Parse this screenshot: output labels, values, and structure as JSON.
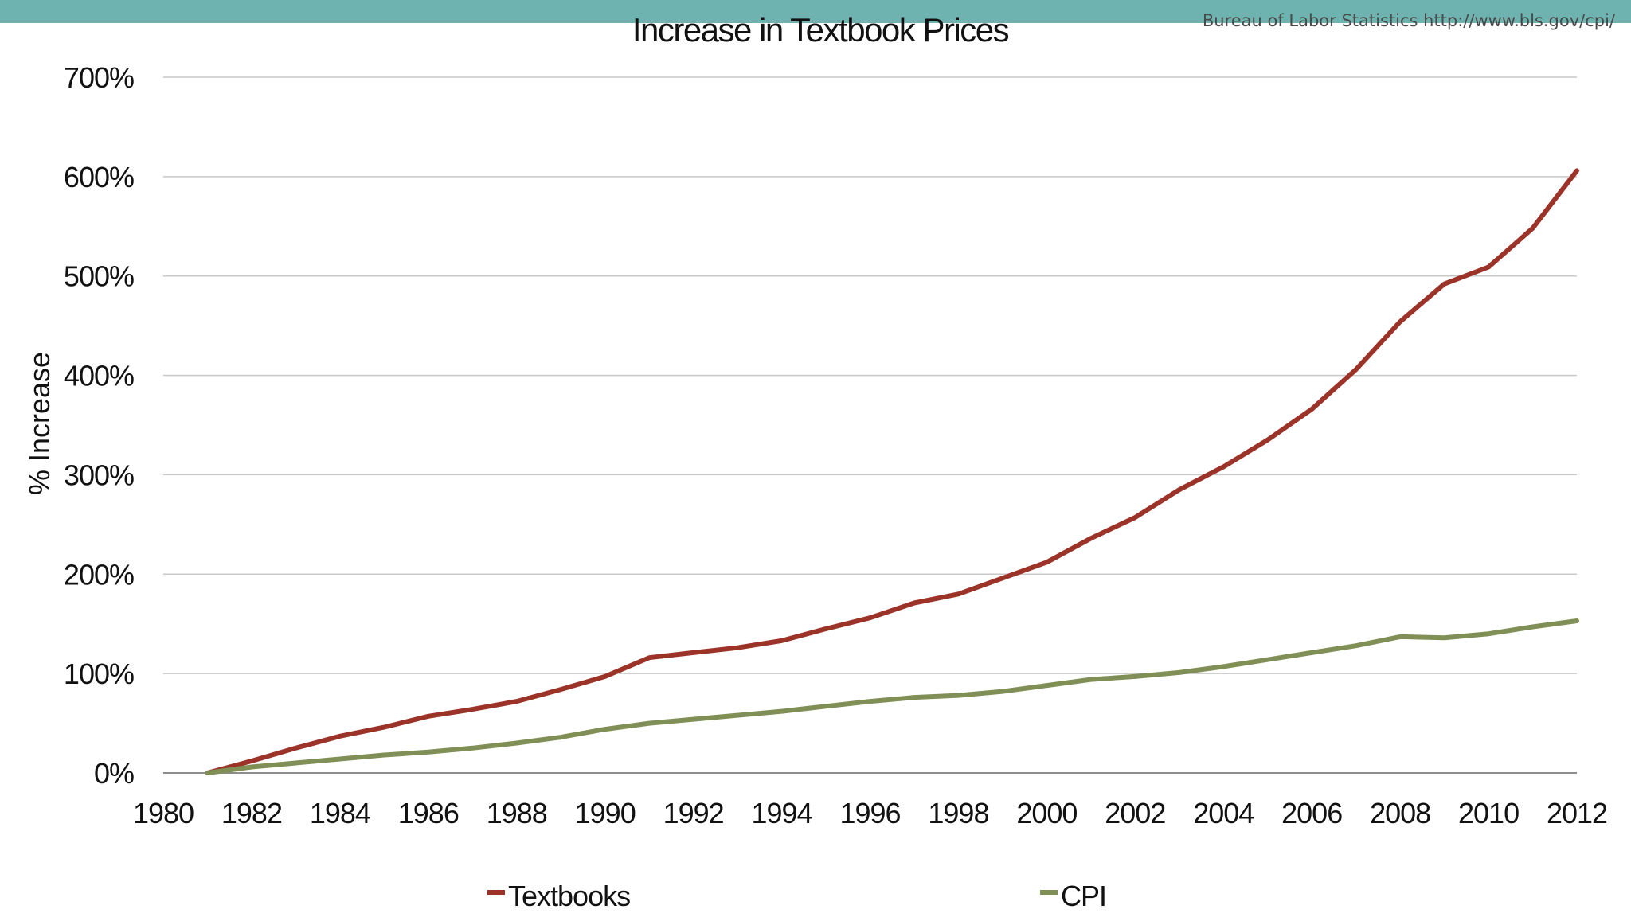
{
  "header": {
    "source": "Bureau of Labor Statistics http://www.bls.gov/cpi/",
    "band_color": "#6fb3b0"
  },
  "chart_data": {
    "type": "line",
    "title": "Increase in Textbook Prices",
    "ylabel": "% Increase",
    "xlabel": "",
    "xlim": [
      1980,
      2012
    ],
    "ylim": [
      0,
      700
    ],
    "x_ticks": [
      "1980",
      "1982",
      "1984",
      "1986",
      "1988",
      "1990",
      "1992",
      "1994",
      "1996",
      "1998",
      "2000",
      "2002",
      "2004",
      "2006",
      "2008",
      "2010",
      "2012"
    ],
    "y_ticks": [
      "0%",
      "100%",
      "200%",
      "300%",
      "400%",
      "500%",
      "600%",
      "700%"
    ],
    "grid": true,
    "legend": "bottom",
    "x": [
      1981,
      1982,
      1983,
      1984,
      1985,
      1986,
      1987,
      1988,
      1989,
      1990,
      1991,
      1992,
      1993,
      1994,
      1995,
      1996,
      1997,
      1998,
      1999,
      2000,
      2001,
      2002,
      2003,
      2004,
      2005,
      2006,
      2007,
      2008,
      2009,
      2010,
      2011,
      2012
    ],
    "series": [
      {
        "name": "Textbooks",
        "color": "#9b3329",
        "values": [
          0,
          12,
          25,
          37,
          46,
          57,
          64,
          72,
          84,
          97,
          116,
          121,
          126,
          133,
          145,
          156,
          171,
          180,
          196,
          212,
          236,
          257,
          285,
          308,
          335,
          366,
          406,
          454,
          492,
          509,
          548,
          606
        ]
      },
      {
        "name": "CPI",
        "color": "#7f8f55",
        "values": [
          0,
          6,
          10,
          14,
          18,
          21,
          25,
          30,
          36,
          44,
          50,
          54,
          58,
          62,
          67,
          72,
          76,
          78,
          82,
          88,
          94,
          97,
          101,
          107,
          114,
          121,
          128,
          137,
          136,
          140,
          147,
          153
        ]
      }
    ]
  }
}
